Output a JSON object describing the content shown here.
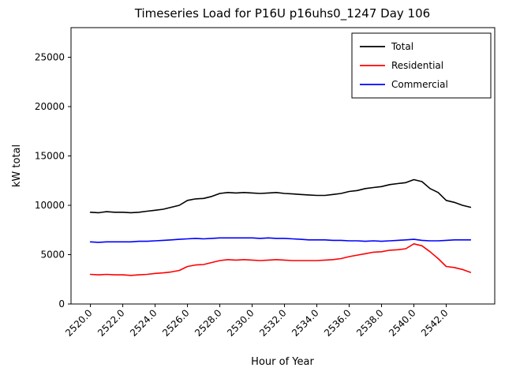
{
  "chart_data": {
    "type": "line",
    "title": "Timeseries Load for P16U p16uhs0_1247  Day 106",
    "xlabel": "Hour of Year",
    "ylabel": "kW total",
    "xlim": [
      2518.8,
      2545.0
    ],
    "ylim": [
      0,
      28000
    ],
    "grid": false,
    "legend_position": "upper right",
    "xticks": [
      2520,
      2522,
      2524,
      2526,
      2528,
      2530,
      2532,
      2534,
      2536,
      2538,
      2540,
      2542
    ],
    "xtick_labels": [
      "2520.0",
      "2522.0",
      "2524.0",
      "2526.0",
      "2528.0",
      "2530.0",
      "2532.0",
      "2534.0",
      "2536.0",
      "2538.0",
      "2540.0",
      "2542.0"
    ],
    "yticks": [
      0,
      5000,
      10000,
      15000,
      20000,
      25000
    ],
    "ytick_labels": [
      "0",
      "5000",
      "10000",
      "15000",
      "20000",
      "25000"
    ],
    "x": [
      2520.0,
      2520.5,
      2521.0,
      2521.5,
      2522.0,
      2522.5,
      2523.0,
      2523.5,
      2524.0,
      2524.5,
      2525.0,
      2525.5,
      2526.0,
      2526.5,
      2527.0,
      2527.5,
      2528.0,
      2528.5,
      2529.0,
      2529.5,
      2530.0,
      2530.5,
      2531.0,
      2531.5,
      2532.0,
      2532.5,
      2533.0,
      2533.5,
      2534.0,
      2534.5,
      2535.0,
      2535.5,
      2536.0,
      2536.5,
      2537.0,
      2537.5,
      2538.0,
      2538.5,
      2539.0,
      2539.5,
      2540.0,
      2540.5,
      2541.0,
      2541.5,
      2542.0,
      2542.5,
      2543.0,
      2543.5
    ],
    "series": [
      {
        "name": "Total",
        "color": "#000000",
        "values": [
          9300,
          9250,
          9350,
          9300,
          9300,
          9250,
          9300,
          9400,
          9500,
          9600,
          9800,
          10000,
          10500,
          10650,
          10700,
          10900,
          11200,
          11300,
          11250,
          11300,
          11250,
          11200,
          11250,
          11300,
          11200,
          11150,
          11100,
          11050,
          11000,
          11000,
          11100,
          11200,
          11400,
          11500,
          11700,
          11800,
          11900,
          12100,
          12200,
          12300,
          12600,
          12400,
          11700,
          11300,
          10500,
          10300,
          10000,
          9800
        ]
      },
      {
        "name": "Residential",
        "color": "#ff0000",
        "values": [
          3000,
          2950,
          3000,
          2950,
          2950,
          2900,
          2950,
          3000,
          3100,
          3150,
          3250,
          3400,
          3800,
          3950,
          4000,
          4200,
          4400,
          4500,
          4450,
          4500,
          4450,
          4400,
          4450,
          4500,
          4450,
          4400,
          4400,
          4400,
          4400,
          4450,
          4500,
          4600,
          4800,
          4950,
          5100,
          5250,
          5300,
          5450,
          5500,
          5600,
          6100,
          5900,
          5300,
          4600,
          3800,
          3700,
          3500,
          3200
        ]
      },
      {
        "name": "Commercial",
        "color": "#0000ff",
        "values": [
          6300,
          6250,
          6300,
          6300,
          6300,
          6300,
          6350,
          6350,
          6400,
          6450,
          6500,
          6550,
          6600,
          6650,
          6600,
          6650,
          6700,
          6700,
          6700,
          6700,
          6700,
          6650,
          6700,
          6650,
          6650,
          6600,
          6550,
          6500,
          6500,
          6500,
          6450,
          6450,
          6400,
          6400,
          6350,
          6400,
          6350,
          6400,
          6450,
          6500,
          6550,
          6450,
          6400,
          6400,
          6450,
          6500,
          6500,
          6500
        ]
      }
    ],
    "legend": [
      {
        "label": "Total",
        "color": "#000000"
      },
      {
        "label": "Residential",
        "color": "#ff0000"
      },
      {
        "label": "Commercial",
        "color": "#0000ff"
      }
    ]
  }
}
